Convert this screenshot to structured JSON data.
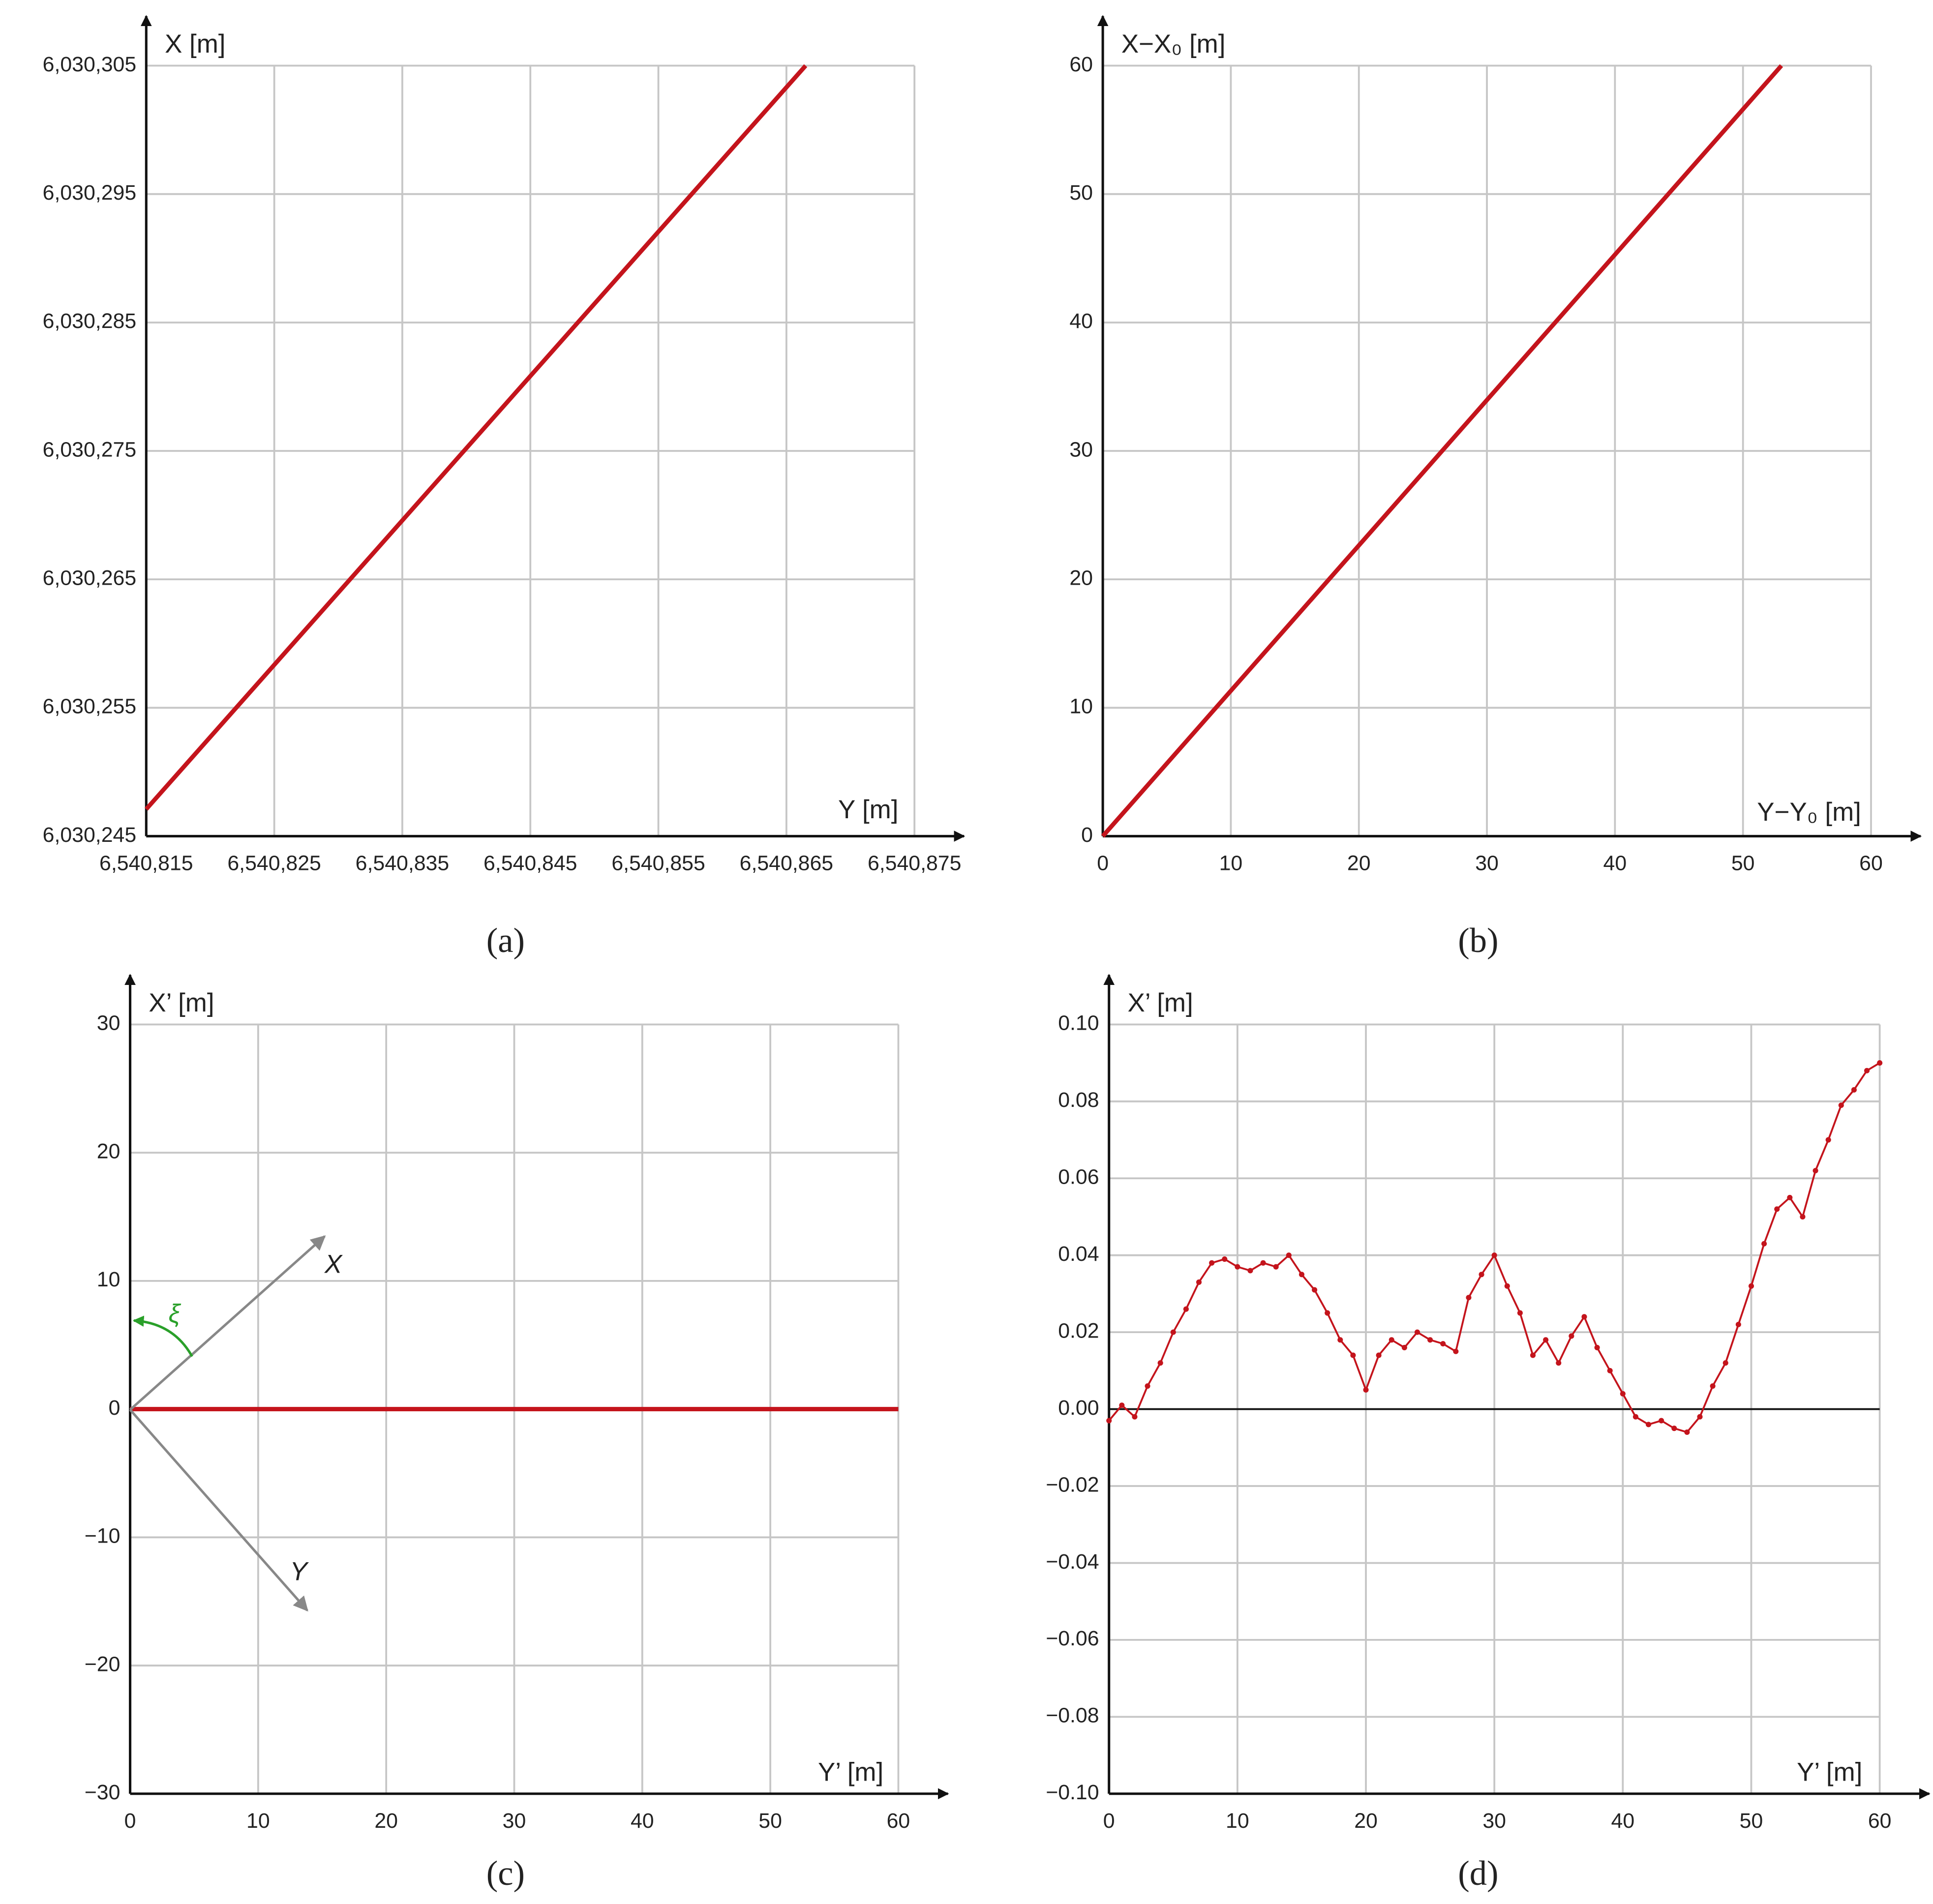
{
  "chart_data": [
    {
      "type": "line",
      "panel": "(a)",
      "x_label": "Y [m]",
      "y_label": "X [m]",
      "color": "#c4141c",
      "grid": true,
      "x": [
        6540815,
        6540866.5
      ],
      "values": [
        6030247.1,
        6030305
      ],
      "xlim": [
        6540815,
        6540875
      ],
      "ylim": [
        6030245,
        6030305
      ],
      "xticks": [
        {
          "value": 6540815,
          "label": "6,540,815"
        },
        {
          "value": 6540825,
          "label": "6,540,825"
        },
        {
          "value": 6540835,
          "label": "6,540,835"
        },
        {
          "value": 6540845,
          "label": "6,540,845"
        },
        {
          "value": 6540855,
          "label": "6,540,855"
        },
        {
          "value": 6540865,
          "label": "6,540,865"
        },
        {
          "value": 6540875,
          "label": "6,540,875"
        }
      ],
      "yticks": [
        {
          "value": 6030245,
          "label": "6,030,245"
        },
        {
          "value": 6030255,
          "label": "6,030,255"
        },
        {
          "value": 6030265,
          "label": "6,030,265"
        },
        {
          "value": 6030275,
          "label": "6,030,275"
        },
        {
          "value": 6030285,
          "label": "6,030,285"
        },
        {
          "value": 6030295,
          "label": "6,030,295"
        },
        {
          "value": 6030305,
          "label": "6,030,305"
        }
      ]
    },
    {
      "type": "line",
      "panel": "(b)",
      "x_label": "Y−Y₀ [m]",
      "y_label": "X−X₀ [m]",
      "color": "#c4141c",
      "grid": true,
      "x": [
        0,
        53
      ],
      "values": [
        0,
        60
      ],
      "xlim": [
        0,
        60
      ],
      "ylim": [
        0,
        60
      ],
      "xticks": [
        0,
        10,
        20,
        30,
        40,
        50,
        60
      ],
      "yticks": [
        0,
        10,
        20,
        30,
        40,
        50,
        60
      ]
    },
    {
      "type": "line",
      "panel": "(c)",
      "x_label": "Y’ [m]",
      "y_label": "X’ [m]",
      "color": "#c4141c",
      "grid": true,
      "annotations": [
        "X",
        "Y",
        "ξ"
      ],
      "x": [
        0,
        60
      ],
      "values": [
        0,
        0
      ],
      "xlim": [
        0,
        60
      ],
      "ylim": [
        -30,
        30
      ],
      "xticks": [
        0,
        10,
        20,
        30,
        40,
        50,
        60
      ],
      "yticks": [
        {
          "value": -30,
          "label": "−30"
        },
        {
          "value": -20,
          "label": "−20"
        },
        {
          "value": -10,
          "label": "−10"
        },
        0,
        10,
        20,
        30
      ]
    },
    {
      "type": "line",
      "panel": "(d)",
      "x_label": "Y’ [m]",
      "y_label": "X’ [m]",
      "color": "#c4141c",
      "grid": true,
      "markers": true,
      "zero_line": true,
      "x": [
        0,
        1,
        2,
        3,
        4,
        5,
        6,
        7,
        8,
        9,
        10,
        11,
        12,
        13,
        14,
        15,
        16,
        17,
        18,
        19,
        20,
        21,
        22,
        23,
        24,
        25,
        26,
        27,
        28,
        29,
        30,
        31,
        32,
        33,
        34,
        35,
        36,
        37,
        38,
        39,
        40,
        41,
        42,
        43,
        44,
        45,
        46,
        47,
        48,
        49,
        50,
        51,
        52,
        53,
        54,
        55,
        56,
        57,
        58,
        59,
        60
      ],
      "values": [
        -0.003,
        0.001,
        -0.002,
        0.006,
        0.012,
        0.02,
        0.026,
        0.033,
        0.038,
        0.039,
        0.037,
        0.036,
        0.038,
        0.037,
        0.04,
        0.035,
        0.031,
        0.025,
        0.018,
        0.014,
        0.005,
        0.014,
        0.018,
        0.016,
        0.02,
        0.018,
        0.017,
        0.015,
        0.029,
        0.035,
        0.04,
        0.032,
        0.025,
        0.014,
        0.018,
        0.012,
        0.019,
        0.024,
        0.016,
        0.01,
        0.004,
        -0.002,
        -0.004,
        -0.003,
        -0.005,
        -0.006,
        -0.002,
        0.006,
        0.012,
        0.022,
        0.032,
        0.043,
        0.052,
        0.055,
        0.05,
        0.062,
        0.07,
        0.079,
        0.083,
        0.088,
        0.09
      ],
      "xlim": [
        0,
        60
      ],
      "ylim": [
        -0.1,
        0.1
      ],
      "xticks": [
        0,
        10,
        20,
        30,
        40,
        50,
        60
      ],
      "yticks": [
        {
          "value": -0.1,
          "label": "−0.10"
        },
        {
          "value": -0.08,
          "label": "−0.08"
        },
        {
          "value": -0.06,
          "label": "−0.06"
        },
        {
          "value": -0.04,
          "label": "−0.04"
        },
        {
          "value": -0.02,
          "label": "−0.02"
        },
        {
          "value": 0,
          "label": "0.00"
        },
        {
          "value": 0.02,
          "label": "0.02"
        },
        {
          "value": 0.04,
          "label": "0.04"
        },
        {
          "value": 0.06,
          "label": "0.06"
        },
        {
          "value": 0.08,
          "label": "0.08"
        },
        {
          "value": 0.1,
          "label": "0.10"
        }
      ]
    }
  ]
}
